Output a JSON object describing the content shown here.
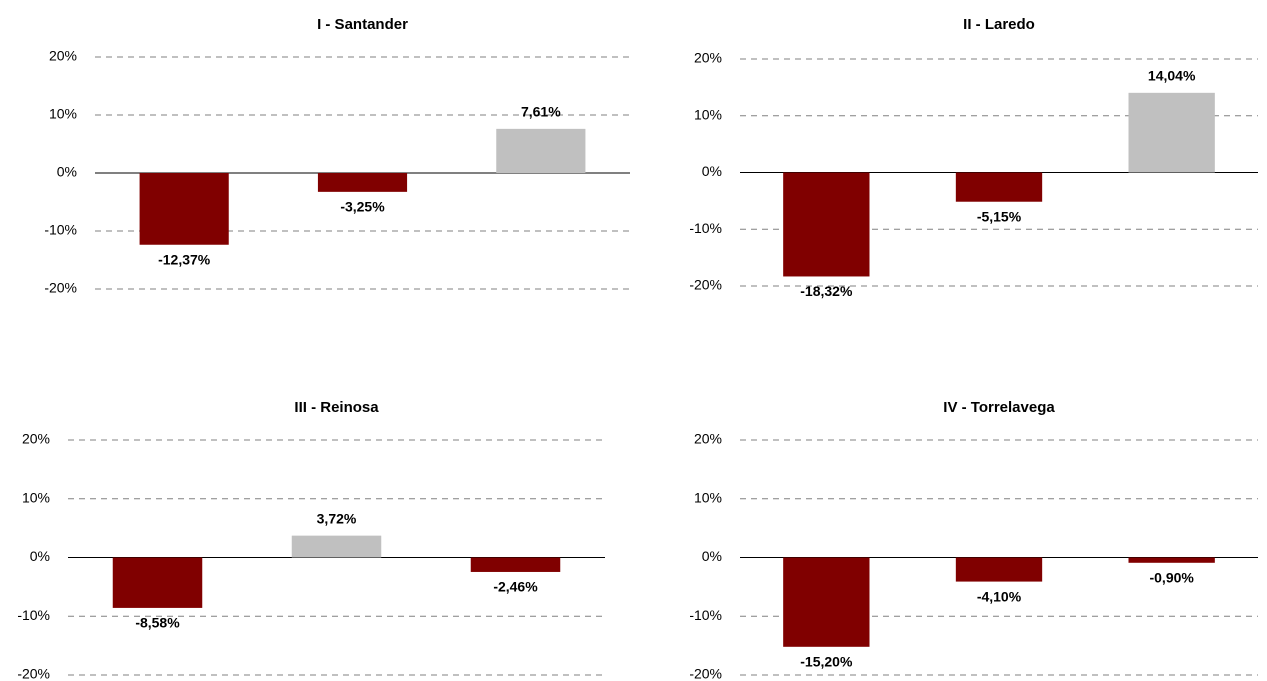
{
  "chart_data": [
    {
      "type": "bar",
      "title": "I - Santander",
      "categories": [
        null,
        null,
        null
      ],
      "values": [
        -12.37,
        -3.25,
        7.61
      ],
      "value_labels": [
        "-12,37%",
        "-3,25%",
        "7,61%"
      ],
      "colors": [
        "#800000",
        "#800000",
        "#c0c0c0"
      ],
      "label_colors": [
        "#ff0000",
        "#ff0000",
        "#000000"
      ],
      "ylim": [
        -20,
        20
      ],
      "yticks": [
        {
          "value": 20,
          "label": "20%"
        },
        {
          "value": 10,
          "label": "10%"
        },
        {
          "value": 0,
          "label": "0%"
        },
        {
          "value": -10,
          "label": "-10%"
        },
        {
          "value": -20,
          "label": "-20%"
        }
      ],
      "grid": true
    },
    {
      "type": "bar",
      "title": "II - Laredo",
      "categories": [
        null,
        null,
        null
      ],
      "values": [
        -18.32,
        -5.15,
        14.04
      ],
      "value_labels": [
        "-18,32%",
        "-5,15%",
        "14,04%"
      ],
      "colors": [
        "#800000",
        "#800000",
        "#c0c0c0"
      ],
      "label_colors": [
        "#ff0000",
        "#ff0000",
        "#000000"
      ],
      "ylim": [
        -20,
        20
      ],
      "yticks": [
        {
          "value": 20,
          "label": "20%"
        },
        {
          "value": 10,
          "label": "10%"
        },
        {
          "value": 0,
          "label": "0%"
        },
        {
          "value": -10,
          "label": "-10%"
        },
        {
          "value": -20,
          "label": "-20%"
        }
      ],
      "grid": true
    },
    {
      "type": "bar",
      "title": "III - Reinosa",
      "categories": [
        null,
        null,
        null
      ],
      "values": [
        -8.58,
        3.72,
        -2.46
      ],
      "value_labels": [
        "-8,58%",
        "3,72%",
        "-2,46%"
      ],
      "colors": [
        "#800000",
        "#c0c0c0",
        "#800000"
      ],
      "label_colors": [
        "#ff0000",
        "#000000",
        "#ff0000"
      ],
      "ylim": [
        -20,
        20
      ],
      "yticks": [
        {
          "value": 20,
          "label": "20%"
        },
        {
          "value": 10,
          "label": "10%"
        },
        {
          "value": 0,
          "label": "0%"
        },
        {
          "value": -10,
          "label": "-10%"
        },
        {
          "value": -20,
          "label": "-20%"
        }
      ],
      "grid": true
    },
    {
      "type": "bar",
      "title": "IV - Torrelavega",
      "categories": [
        null,
        null,
        null
      ],
      "values": [
        -15.2,
        -4.1,
        -0.9
      ],
      "value_labels": [
        "-15,20%",
        "-4,10%",
        "-0,90%"
      ],
      "colors": [
        "#800000",
        "#800000",
        "#800000"
      ],
      "label_colors": [
        "#ff0000",
        "#ff0000",
        "#ff0000"
      ],
      "ylim": [
        -20,
        20
      ],
      "yticks": [
        {
          "value": 20,
          "label": "20%"
        },
        {
          "value": 10,
          "label": "10%"
        },
        {
          "value": 0,
          "label": "0%"
        },
        {
          "value": -10,
          "label": "-10%"
        },
        {
          "value": -20,
          "label": "-20%"
        }
      ],
      "grid": true
    }
  ]
}
